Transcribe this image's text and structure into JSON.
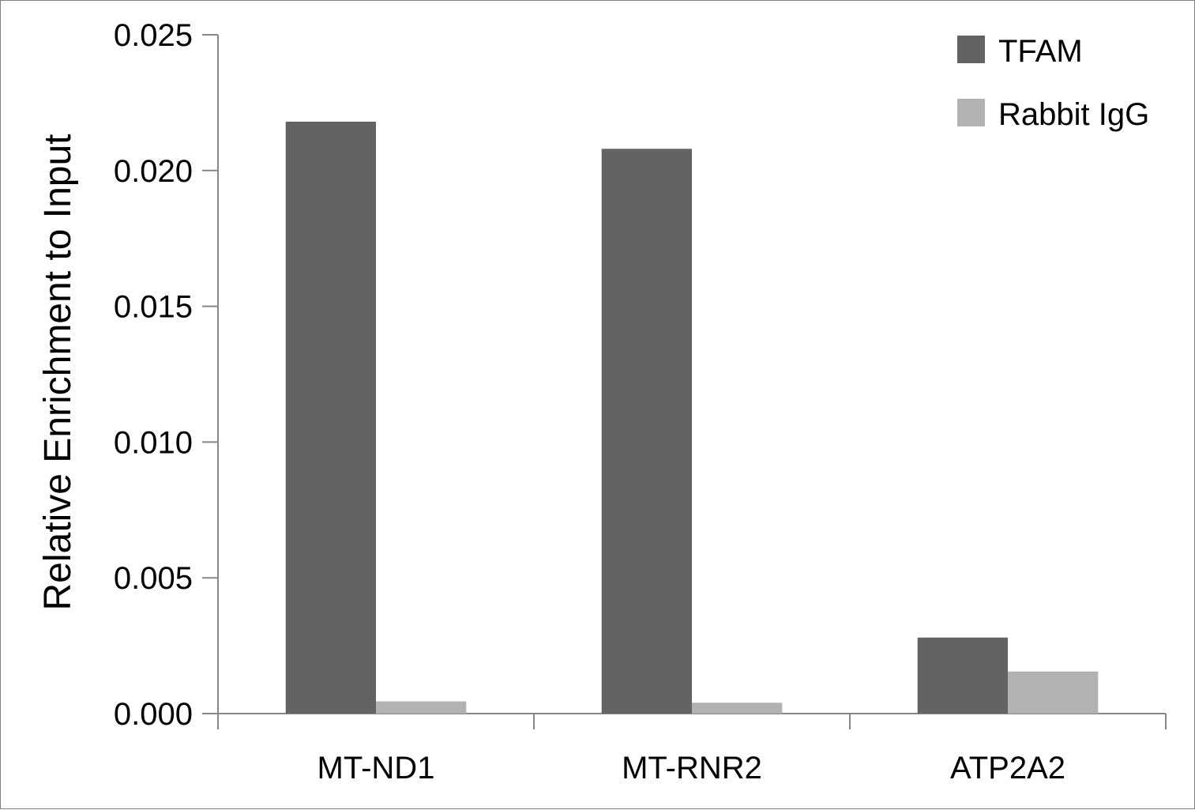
{
  "chart_data": {
    "type": "bar",
    "title": "",
    "xlabel": "",
    "ylabel": "Relative Enrichment to Input",
    "categories": [
      "MT-ND1",
      "MT-RNR2",
      "ATP2A2"
    ],
    "series": [
      {
        "name": "TFAM",
        "values": [
          0.0218,
          0.0208,
          0.0028
        ],
        "color": "#636363"
      },
      {
        "name": "Rabbit IgG",
        "values": [
          0.00045,
          0.0004,
          0.00155
        ],
        "color": "#b2b2b2"
      }
    ],
    "ylim": [
      0,
      0.025
    ],
    "yticks": [
      "0.000",
      "0.005",
      "0.010",
      "0.015",
      "0.020",
      "0.025"
    ],
    "grid": false,
    "legend_position": "top-right"
  }
}
